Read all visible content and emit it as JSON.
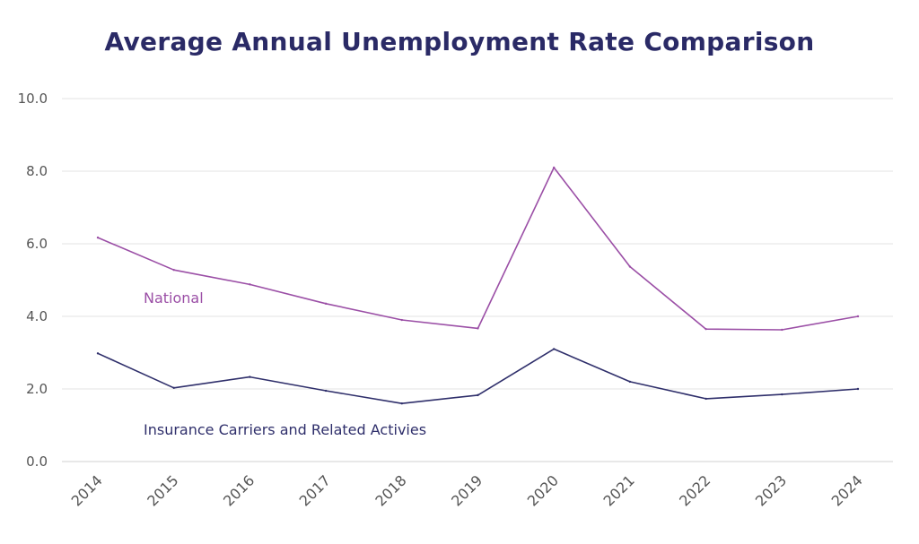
{
  "chart_data": {
    "type": "line",
    "title": "Average Annual Unemployment Rate Comparison",
    "xlabel": "",
    "ylabel": "",
    "x": [
      "2014",
      "2015",
      "2016",
      "2017",
      "2018",
      "2019",
      "2020",
      "2021",
      "2022",
      "2023",
      "2024"
    ],
    "ylim": [
      0,
      10
    ],
    "yticks": [
      "0.0",
      "2.0",
      "4.0",
      "6.0",
      "8.0",
      "10.0"
    ],
    "grid": true,
    "legend": "inline labels",
    "series": [
      {
        "name": "National",
        "color": "#9b4fa6",
        "values": [
          6.17,
          5.28,
          4.88,
          4.35,
          3.9,
          3.67,
          8.1,
          5.37,
          3.65,
          3.63,
          4.0
        ]
      },
      {
        "name": "Insurance Carriers and Related Activies",
        "color": "#2f2f6b",
        "values": [
          2.98,
          2.03,
          2.33,
          1.95,
          1.6,
          1.83,
          3.1,
          2.2,
          1.73,
          1.85,
          2.0
        ]
      }
    ]
  }
}
